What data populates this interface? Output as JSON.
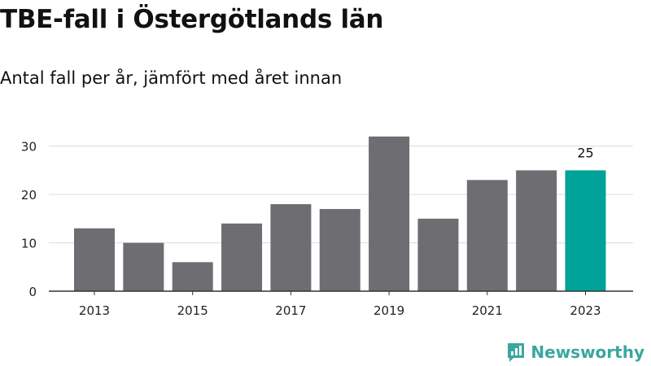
{
  "title": "TBE-fall i Östergötlands län",
  "subtitle": "Antal fall per år, jämfört med året innan",
  "brand": {
    "name": "Newsworthy",
    "icon": "newsworthy-logo-icon",
    "color": "#3aa79e"
  },
  "chart_data": {
    "type": "bar",
    "categories": [
      "2013",
      "2014",
      "2015",
      "2016",
      "2017",
      "2018",
      "2019",
      "2020",
      "2021",
      "2022",
      "2023"
    ],
    "values": [
      13,
      10,
      6,
      14,
      18,
      17,
      32,
      15,
      23,
      25,
      25
    ],
    "x_tick_labels": [
      "2013",
      "2015",
      "2017",
      "2019",
      "2021",
      "2023"
    ],
    "y_ticks": [
      0,
      10,
      20,
      30
    ],
    "ylim": [
      0,
      35
    ],
    "grid": true,
    "bar_color": "#6e6d72",
    "highlight_color": "#00a398",
    "highlight_index": 10,
    "data_labels": [
      {
        "index": 10,
        "text": "25"
      }
    ]
  }
}
